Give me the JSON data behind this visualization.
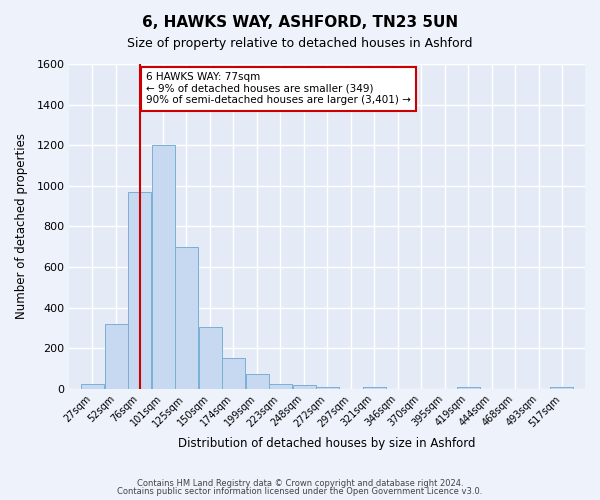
{
  "title": "6, HAWKS WAY, ASHFORD, TN23 5UN",
  "subtitle": "Size of property relative to detached houses in Ashford",
  "xlabel": "Distribution of detached houses by size in Ashford",
  "ylabel": "Number of detached properties",
  "bar_labels": [
    "27sqm",
    "52sqm",
    "76sqm",
    "101sqm",
    "125sqm",
    "150sqm",
    "174sqm",
    "199sqm",
    "223sqm",
    "248sqm",
    "272sqm",
    "297sqm",
    "321sqm",
    "346sqm",
    "370sqm",
    "395sqm",
    "419sqm",
    "444sqm",
    "468sqm",
    "493sqm",
    "517sqm"
  ],
  "bar_centers": [
    27,
    52,
    76,
    101,
    125,
    150,
    174,
    199,
    223,
    248,
    272,
    297,
    321,
    346,
    370,
    395,
    419,
    444,
    468,
    493,
    517
  ],
  "bar_values": [
    25,
    320,
    970,
    1200,
    700,
    305,
    150,
    75,
    25,
    20,
    10,
    0,
    10,
    0,
    0,
    0,
    10,
    0,
    0,
    0,
    10
  ],
  "bin_width": 24,
  "bar_color": "#c6d9f0",
  "bar_edge_color": "#7aafd4",
  "property_line_x": 77,
  "property_line_color": "#cc0000",
  "annotation_text": "6 HAWKS WAY: 77sqm\n← 9% of detached houses are smaller (349)\n90% of semi-detached houses are larger (3,401) →",
  "annotation_box_color": "#cc0000",
  "ylim": [
    0,
    1600
  ],
  "yticks": [
    0,
    200,
    400,
    600,
    800,
    1000,
    1200,
    1400,
    1600
  ],
  "footer1": "Contains HM Land Registry data © Crown copyright and database right 2024.",
  "footer2": "Contains public sector information licensed under the Open Government Licence v3.0.",
  "background_color": "#eef2fb",
  "axes_bg": "#e4eaf6",
  "grid_color": "#ffffff"
}
